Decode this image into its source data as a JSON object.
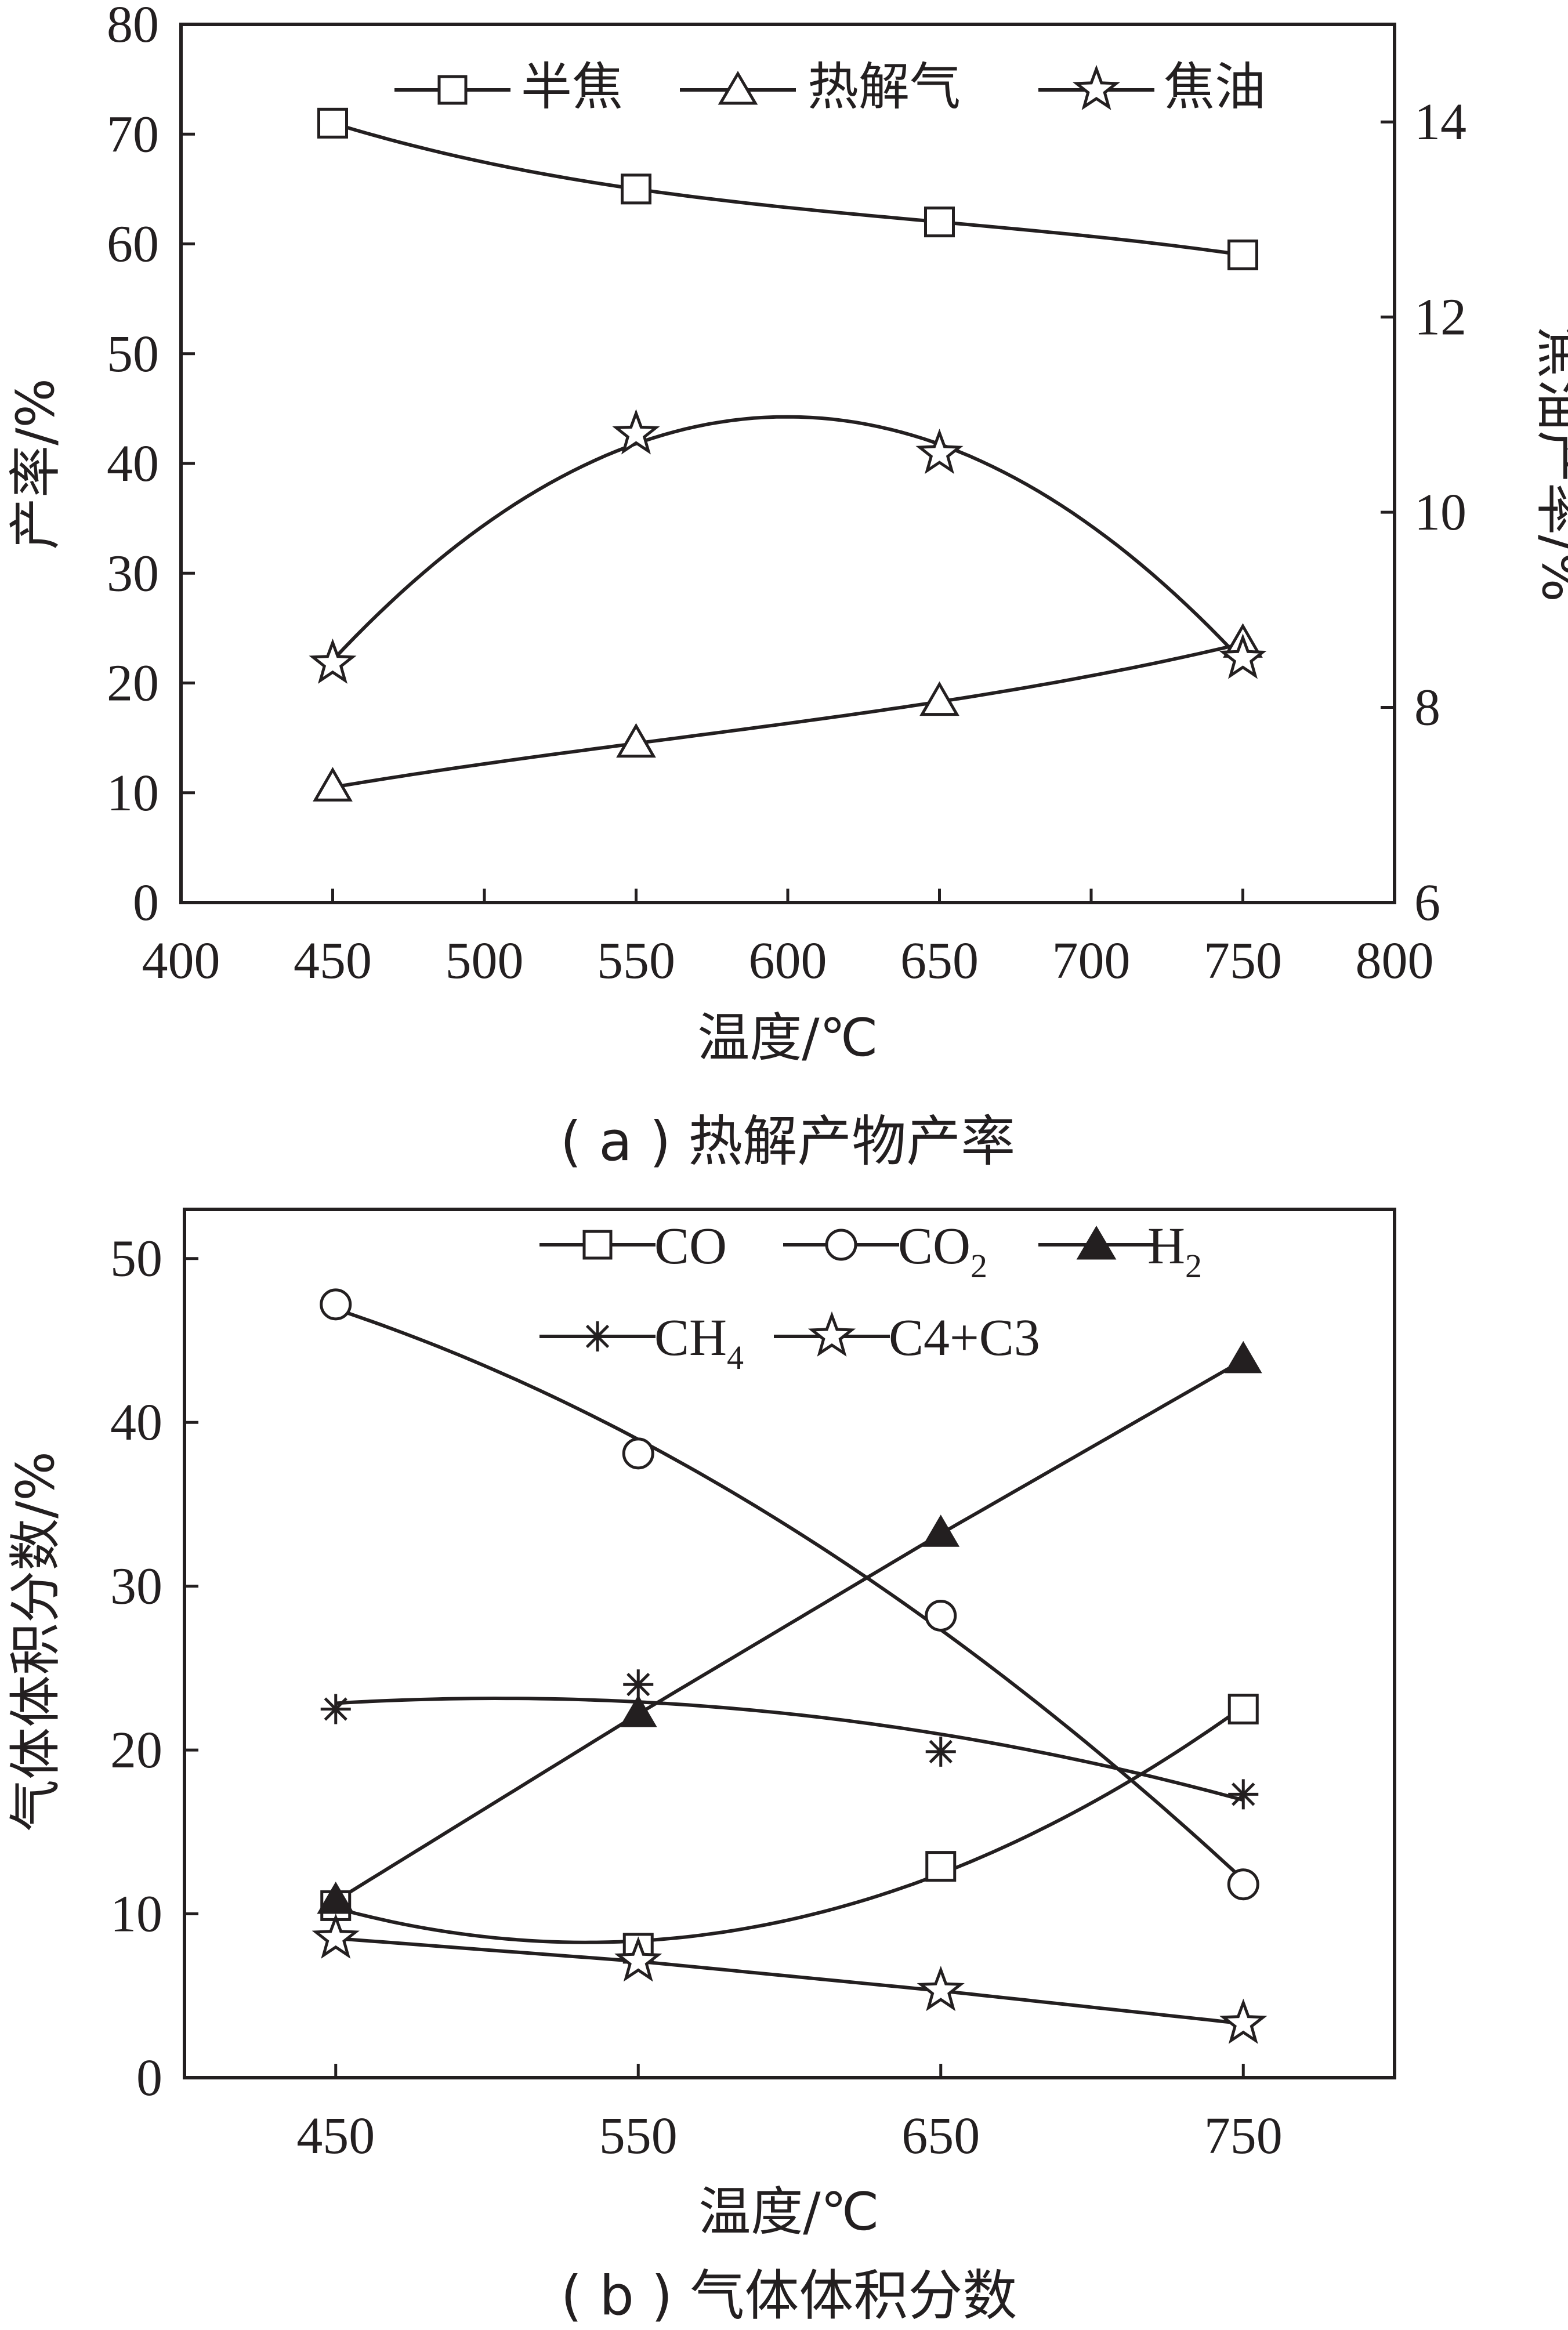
{
  "chart_data": [
    {
      "type": "line",
      "panel_caption": "( a ) 热解产物产率",
      "xlabel": "温度/℃",
      "ylabel": "产率/%",
      "ylabel_right": "焦油产率/%",
      "xlim": [
        400,
        800
      ],
      "ylim": [
        0,
        80
      ],
      "ylim_right": [
        6,
        15
      ],
      "x_ticks": [
        400,
        450,
        500,
        550,
        600,
        650,
        700,
        750,
        800
      ],
      "y_ticks": [
        0,
        10,
        20,
        30,
        40,
        50,
        60,
        70,
        80
      ],
      "y_ticks_right": [
        6,
        8,
        10,
        12,
        14
      ],
      "x": [
        450,
        550,
        650,
        750
      ],
      "series": [
        {
          "name": "半焦",
          "marker": "square",
          "axis": "left",
          "values": [
            71,
            65,
            62,
            59
          ]
        },
        {
          "name": "热解气",
          "marker": "triangle",
          "axis": "left",
          "values": [
            10.5,
            14.5,
            18.3,
            23.6
          ]
        },
        {
          "name": "焦油",
          "marker": "star",
          "axis": "right",
          "values": [
            8.45,
            10.8,
            10.6,
            8.5
          ]
        }
      ],
      "legend": "top",
      "grid": false
    },
    {
      "type": "line",
      "panel_caption": "( b ) 气体体积分数",
      "xlabel": "温度/℃",
      "ylabel": "气体体积分数/%",
      "xlim": [
        400,
        800
      ],
      "ylim": [
        0,
        53
      ],
      "x_ticks": [
        450,
        550,
        650,
        750
      ],
      "y_ticks": [
        0,
        10,
        20,
        30,
        40,
        50
      ],
      "x": [
        450,
        550,
        650,
        750
      ],
      "series": [
        {
          "name": "CO",
          "marker": "square",
          "values": [
            10.5,
            7.9,
            12.9,
            22.5
          ]
        },
        {
          "name": "CO2",
          "marker": "circle",
          "values": [
            47.2,
            38.1,
            28.2,
            11.8
          ]
        },
        {
          "name": "H2",
          "marker": "filled-triangle",
          "values": [
            10.8,
            22.2,
            33.2,
            43.8
          ]
        },
        {
          "name": "CH4",
          "marker": "asterisk",
          "values": [
            22.5,
            24.0,
            19.9,
            17.3
          ]
        },
        {
          "name": "C4+C3",
          "marker": "star",
          "values": [
            8.5,
            7.1,
            5.3,
            3.3
          ]
        }
      ],
      "legend": "top-right",
      "grid": false
    }
  ]
}
